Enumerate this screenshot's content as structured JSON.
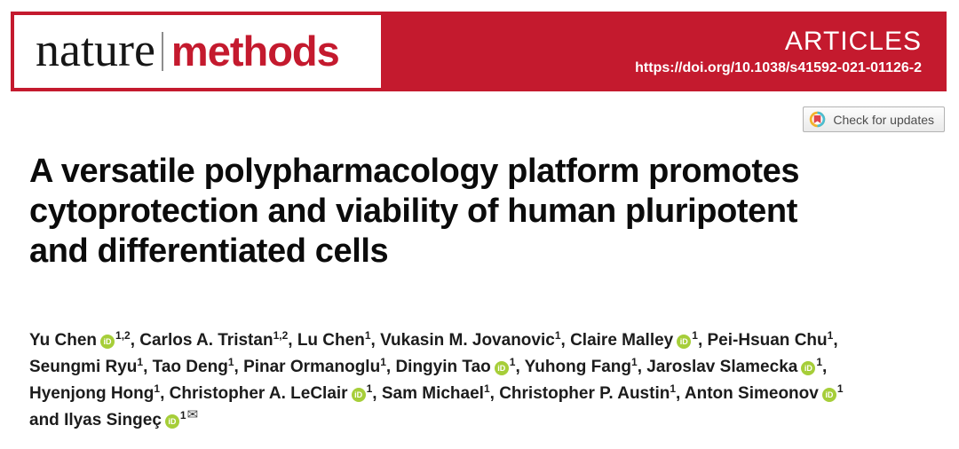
{
  "banner": {
    "background_color": "#c41a2e",
    "logo": {
      "nature": "nature",
      "methods": "methods",
      "methods_color": "#c41a2e"
    },
    "section_label": "ARTICLES",
    "doi": "https://doi.org/10.1038/s41592-021-01126-2"
  },
  "check_for_updates": {
    "label": "Check for updates",
    "icon": "crossmark-icon",
    "icon_colors": {
      "yellow": "#f2b32c",
      "teal": "#4cbdd1",
      "red": "#e0434b"
    }
  },
  "title": {
    "lines": [
      "A versatile polypharmacology platform promotes",
      "cytoprotection and viability of human pluripotent",
      "and differentiated cells"
    ]
  },
  "authors": {
    "orcid_icon": {
      "label": "iD",
      "color": "#a6ce39"
    },
    "email_glyph": "✉",
    "lines": [
      [
        {
          "name": "Yu Chen",
          "orcid": true,
          "sup": "1,2",
          "sep": ", "
        },
        {
          "name": "Carlos A. Tristan",
          "orcid": false,
          "sup": "1,2",
          "sep": ", "
        },
        {
          "name": "Lu Chen",
          "orcid": false,
          "sup": "1",
          "sep": ", "
        },
        {
          "name": "Vukasin M. Jovanovic",
          "orcid": false,
          "sup": "1",
          "sep": ", "
        },
        {
          "name": "Claire Malley",
          "orcid": true,
          "sup": "1",
          "sep": ", "
        },
        {
          "name": "Pei-Hsuan Chu",
          "orcid": false,
          "sup": "1",
          "sep": ","
        }
      ],
      [
        {
          "name": "Seungmi Ryu",
          "orcid": false,
          "sup": "1",
          "sep": ", "
        },
        {
          "name": "Tao Deng",
          "orcid": false,
          "sup": "1",
          "sep": ", "
        },
        {
          "name": "Pinar Ormanoglu",
          "orcid": false,
          "sup": "1",
          "sep": ", "
        },
        {
          "name": "Dingyin Tao",
          "orcid": true,
          "sup": "1",
          "sep": ", "
        },
        {
          "name": "Yuhong Fang",
          "orcid": false,
          "sup": "1",
          "sep": ", "
        },
        {
          "name": "Jaroslav Slamecka",
          "orcid": true,
          "sup": "1",
          "sep": ","
        }
      ],
      [
        {
          "name": "Hyenjong Hong",
          "orcid": false,
          "sup": "1",
          "sep": ", "
        },
        {
          "name": "Christopher A. LeClair",
          "orcid": true,
          "sup": "1",
          "sep": ", "
        },
        {
          "name": "Sam Michael",
          "orcid": false,
          "sup": "1",
          "sep": ", "
        },
        {
          "name": "Christopher P. Austin",
          "orcid": false,
          "sup": "1",
          "sep": ", "
        },
        {
          "name": "Anton Simeonov",
          "orcid": true,
          "sup": "1",
          "sep": ""
        }
      ],
      [
        {
          "pre": "and ",
          "name": "Ilyas Singeç",
          "orcid": true,
          "sup": "1",
          "email": true,
          "sep": ""
        }
      ]
    ]
  }
}
